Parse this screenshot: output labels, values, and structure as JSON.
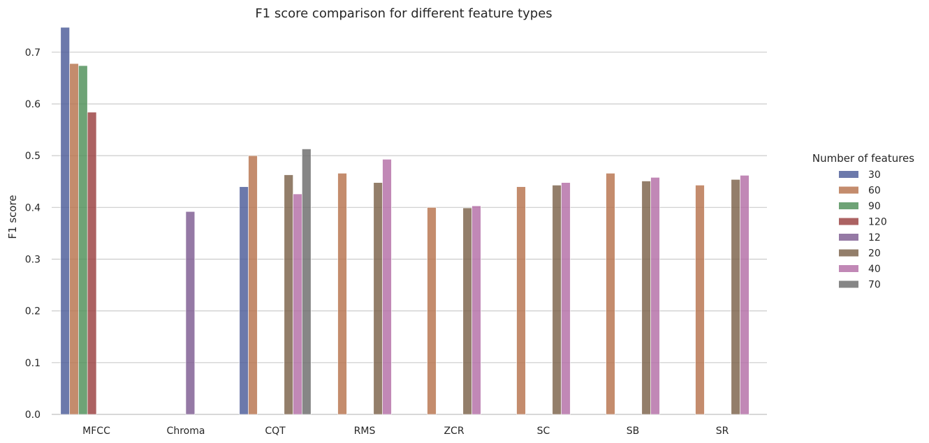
{
  "chart_data": {
    "type": "bar",
    "title": "F1 score comparison for different feature types",
    "xlabel": "",
    "ylabel": "F1 score",
    "ylim": [
      0,
      0.755
    ],
    "yticks": [
      "0.0",
      "0.1",
      "0.2",
      "0.3",
      "0.4",
      "0.5",
      "0.6",
      "0.7"
    ],
    "grid": true,
    "legend_placement": "right",
    "legend_title": "Number of features",
    "categories": [
      "MFCC",
      "Chroma",
      "CQT",
      "RMS",
      "ZCR",
      "SC",
      "SB",
      "SR"
    ],
    "series": [
      {
        "name": "30",
        "color": "#4c5b99",
        "values": [
          0.748,
          null,
          0.44,
          null,
          null,
          null,
          null,
          null
        ]
      },
      {
        "name": "60",
        "color": "#b7734d",
        "values": [
          0.678,
          null,
          0.5,
          0.466,
          0.4,
          0.44,
          0.466,
          0.443
        ]
      },
      {
        "name": "90",
        "color": "#4e8f58",
        "values": [
          0.674,
          null,
          null,
          null,
          null,
          null,
          null,
          null
        ]
      },
      {
        "name": "120",
        "color": "#9a3f3f",
        "values": [
          0.584,
          null,
          null,
          null,
          null,
          null,
          null,
          null
        ]
      },
      {
        "name": "12",
        "color": "#7e5c91",
        "values": [
          null,
          0.392,
          null,
          null,
          null,
          null,
          null,
          null
        ]
      },
      {
        "name": "20",
        "color": "#7b6249",
        "values": [
          null,
          null,
          0.463,
          0.448,
          0.399,
          0.443,
          0.451,
          0.454
        ]
      },
      {
        "name": "40",
        "color": "#b36ea6",
        "values": [
          null,
          null,
          0.426,
          0.493,
          0.403,
          0.448,
          0.458,
          0.462
        ]
      },
      {
        "name": "70",
        "color": "#6b6b6b",
        "values": [
          null,
          null,
          0.513,
          null,
          null,
          null,
          null,
          null
        ]
      }
    ]
  }
}
